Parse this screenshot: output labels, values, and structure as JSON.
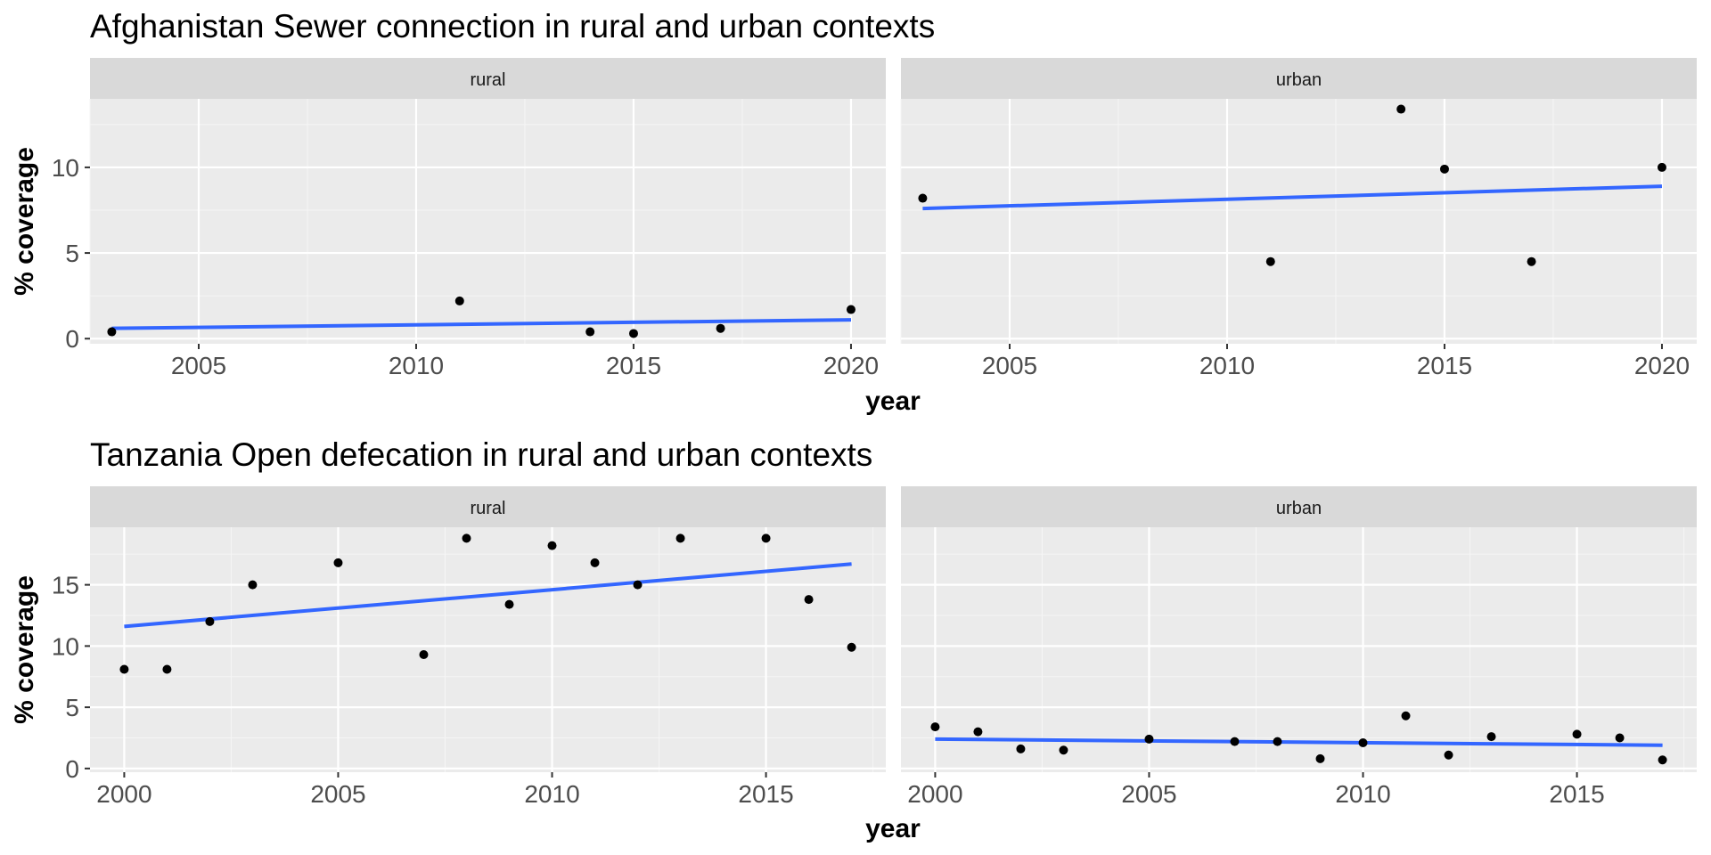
{
  "colors": {
    "panel_background": "#EBEBEB",
    "strip_background": "#D9D9D9",
    "grid_major": "#FFFFFF",
    "grid_minor": "#F5F5F5",
    "trend_line": "#3366FF",
    "point": "#000000",
    "tick_mark": "#333333"
  },
  "chart_data": [
    {
      "type": "scatter",
      "title": "Afghanistan Sewer connection in rural and urban contexts",
      "xlabel": "year",
      "ylabel": "% coverage",
      "x_ticks": [
        2005,
        2010,
        2015,
        2020
      ],
      "y_ticks": [
        0,
        5,
        10
      ],
      "xlim": [
        2002.5,
        2020.8
      ],
      "ylim": [
        -0.3,
        14.0
      ],
      "grid": true,
      "trend": "linear fit",
      "facets": [
        {
          "label": "rural",
          "points": [
            {
              "x": 2003,
              "y": 0.4
            },
            {
              "x": 2011,
              "y": 2.2
            },
            {
              "x": 2014,
              "y": 0.4
            },
            {
              "x": 2015,
              "y": 0.3
            },
            {
              "x": 2017,
              "y": 0.6
            },
            {
              "x": 2020,
              "y": 1.7
            }
          ],
          "trend_line": {
            "x": [
              2003,
              2020
            ],
            "y": [
              0.6,
              1.1
            ]
          }
        },
        {
          "label": "urban",
          "points": [
            {
              "x": 2003,
              "y": 8.2
            },
            {
              "x": 2011,
              "y": 4.5
            },
            {
              "x": 2014,
              "y": 13.4
            },
            {
              "x": 2015,
              "y": 9.9
            },
            {
              "x": 2017,
              "y": 4.5
            },
            {
              "x": 2020,
              "y": 10.0
            }
          ],
          "trend_line": {
            "x": [
              2003,
              2020
            ],
            "y": [
              7.6,
              8.9
            ]
          }
        }
      ]
    },
    {
      "type": "scatter",
      "title": "Tanzania Open defecation in rural and urban contexts",
      "xlabel": "year",
      "ylabel": "% coverage",
      "x_ticks": [
        2000,
        2005,
        2010,
        2015
      ],
      "y_ticks": [
        0,
        5,
        10,
        15
      ],
      "xlim": [
        1999.2,
        2017.8
      ],
      "ylim": [
        -0.3,
        19.7
      ],
      "grid": true,
      "trend": "linear fit",
      "facets": [
        {
          "label": "rural",
          "points": [
            {
              "x": 2000,
              "y": 8.1
            },
            {
              "x": 2001,
              "y": 8.1
            },
            {
              "x": 2002,
              "y": 12.0
            },
            {
              "x": 2003,
              "y": 15.0
            },
            {
              "x": 2005,
              "y": 16.8
            },
            {
              "x": 2007,
              "y": 9.3
            },
            {
              "x": 2008,
              "y": 18.8
            },
            {
              "x": 2009,
              "y": 13.4
            },
            {
              "x": 2010,
              "y": 18.2
            },
            {
              "x": 2011,
              "y": 16.8
            },
            {
              "x": 2012,
              "y": 15.0
            },
            {
              "x": 2013,
              "y": 18.8
            },
            {
              "x": 2015,
              "y": 18.8
            },
            {
              "x": 2016,
              "y": 13.8
            },
            {
              "x": 2017,
              "y": 9.9
            }
          ],
          "trend_line": {
            "x": [
              2000,
              2017
            ],
            "y": [
              11.6,
              16.7
            ]
          }
        },
        {
          "label": "urban",
          "points": [
            {
              "x": 2000,
              "y": 3.4
            },
            {
              "x": 2001,
              "y": 3.0
            },
            {
              "x": 2002,
              "y": 1.6
            },
            {
              "x": 2003,
              "y": 1.5
            },
            {
              "x": 2005,
              "y": 2.4
            },
            {
              "x": 2007,
              "y": 2.2
            },
            {
              "x": 2008,
              "y": 2.2
            },
            {
              "x": 2009,
              "y": 0.8
            },
            {
              "x": 2010,
              "y": 2.1
            },
            {
              "x": 2011,
              "y": 4.3
            },
            {
              "x": 2012,
              "y": 1.1
            },
            {
              "x": 2013,
              "y": 2.6
            },
            {
              "x": 2015,
              "y": 2.8
            },
            {
              "x": 2016,
              "y": 2.5
            },
            {
              "x": 2017,
              "y": 0.7
            }
          ],
          "trend_line": {
            "x": [
              2000,
              2017
            ],
            "y": [
              2.4,
              1.9
            ]
          }
        }
      ]
    }
  ]
}
